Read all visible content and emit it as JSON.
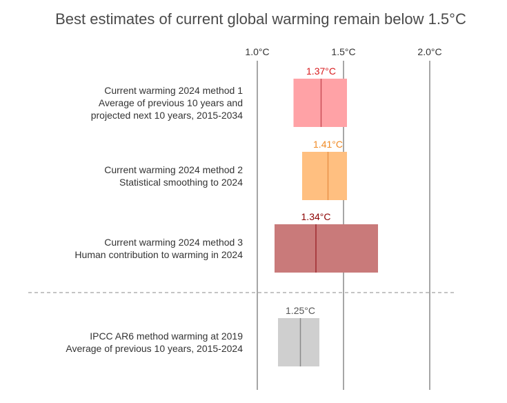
{
  "chart_data": {
    "type": "range-bar",
    "title": "Best estimates of current global warming remain below 1.5°C",
    "unit": "°C",
    "x_ticks": [
      {
        "value": 1.0,
        "label": "1.0°C"
      },
      {
        "value": 1.5,
        "label": "1.5°C"
      },
      {
        "value": 2.0,
        "label": "2.0°C"
      }
    ],
    "xlim": [
      0.6,
      2.15
    ],
    "grid": true,
    "rows": [
      {
        "key": "method-1",
        "label_lines": [
          "Current warming 2024 method 1",
          "Average of previous 10 years and",
          "projected next 10 years, 2015-2034"
        ],
        "low": 1.21,
        "high": 1.52,
        "best": 1.37,
        "value_label": "1.37°C",
        "fill_color": "#ffa2a6",
        "line_color": "#c94f57",
        "label_color": "#d7191c"
      },
      {
        "key": "method-2",
        "label_lines": [
          "Current warming 2024 method 2",
          "Statistical smoothing to 2024"
        ],
        "low": 1.26,
        "high": 1.52,
        "best": 1.41,
        "value_label": "1.41°C",
        "fill_color": "#ffbf80",
        "line_color": "#e8924a",
        "label_color": "#f08a24"
      },
      {
        "key": "method-3",
        "label_lines": [
          "Current warming 2024 method 3",
          "Human contribution to warming in 2024"
        ],
        "low": 1.1,
        "high": 1.7,
        "best": 1.34,
        "value_label": "1.34°C",
        "fill_color": "#c97a7a",
        "line_color": "#9e2a2f",
        "label_color": "#8b0000"
      },
      {
        "key": "ipcc-ar6",
        "label_lines": [
          "IPCC AR6 method warming at 2019",
          "Average of previous 10 years, 2015-2024"
        ],
        "low": 1.12,
        "high": 1.36,
        "best": 1.25,
        "value_label": "1.25°C",
        "fill_color": "#cfcfcf",
        "line_color": "#8a8a8a",
        "label_color": "#555555"
      }
    ],
    "separator_after_row": 3
  }
}
